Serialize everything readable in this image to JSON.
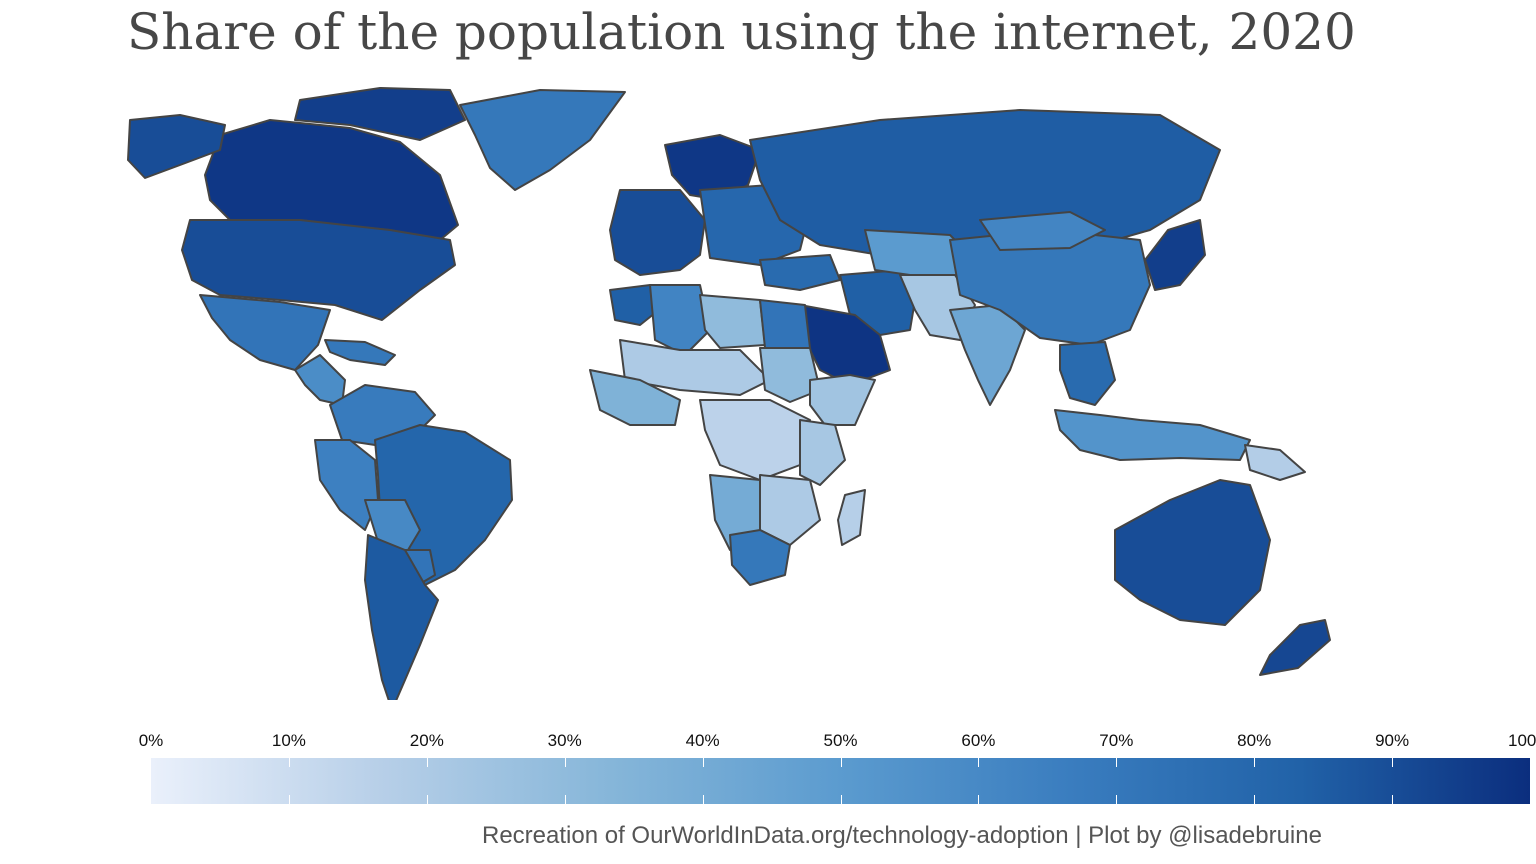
{
  "title": "Share of the population using the internet, 2020",
  "caption": "Recreation of OurWorldInData.org/technology-adoption | Plot by @lisadebruine",
  "legend": {
    "min": 0,
    "max": 100,
    "tick_labels": [
      "0%",
      "10%",
      "20%",
      "30%",
      "40%",
      "50%",
      "60%",
      "70%",
      "80%",
      "90%",
      "100%"
    ],
    "color_low": "#eaf0fb",
    "color_high": "#0b2e7e",
    "color_stops": [
      "#eaf0fb",
      "#b7cfe8",
      "#86b6d9",
      "#5b9bcf",
      "#3a7dbf",
      "#2162a8",
      "#0b2e7e"
    ]
  },
  "colors": {
    "border": "#444444",
    "ocean": "#ffffff",
    "title": "#474747",
    "caption": "#555555"
  },
  "map_data": {
    "type": "choropleth",
    "variable": "share of population using the internet (%)",
    "regions": [
      {
        "name": "Canada",
        "value": 97
      },
      {
        "name": "Alaska (United States)",
        "value": 90
      },
      {
        "name": "Greenland",
        "value": 70
      },
      {
        "name": "Canadian Arctic",
        "value": 95
      },
      {
        "name": "United States",
        "value": 90
      },
      {
        "name": "Mexico",
        "value": 72
      },
      {
        "name": "Central America",
        "value": 58
      },
      {
        "name": "Caribbean",
        "value": 70
      },
      {
        "name": "Colombia & Venezuela",
        "value": 68
      },
      {
        "name": "Ecuador & Peru",
        "value": 65
      },
      {
        "name": "Brazil",
        "value": 81
      },
      {
        "name": "Bolivia",
        "value": 60
      },
      {
        "name": "Paraguay",
        "value": 72
      },
      {
        "name": "Chile & Argentina",
        "value": 86
      },
      {
        "name": "Western Europe",
        "value": 90
      },
      {
        "name": "Scandinavia",
        "value": 97
      },
      {
        "name": "Eastern Europe",
        "value": 80
      },
      {
        "name": "Russia",
        "value": 85
      },
      {
        "name": "Turkey",
        "value": 78
      },
      {
        "name": "Iran",
        "value": 84
      },
      {
        "name": "Saudi Arabia",
        "value": 98
      },
      {
        "name": "Central Asia",
        "value": 50
      },
      {
        "name": "Afghanistan & Pakistan",
        "value": 22
      },
      {
        "name": "India",
        "value": 43
      },
      {
        "name": "China",
        "value": 70
      },
      {
        "name": "Mongolia",
        "value": 62
      },
      {
        "name": "Japan & Korea",
        "value": 95
      },
      {
        "name": "Southeast Asia",
        "value": 78
      },
      {
        "name": "Indonesia",
        "value": 54
      },
      {
        "name": "Papua New Guinea",
        "value": 18
      },
      {
        "name": "Australia",
        "value": 90
      },
      {
        "name": "New Zealand",
        "value": 92
      },
      {
        "name": "Morocco",
        "value": 84
      },
      {
        "name": "Algeria",
        "value": 63
      },
      {
        "name": "Libya",
        "value": 30
      },
      {
        "name": "Egypt",
        "value": 72
      },
      {
        "name": "Sahel",
        "value": 20
      },
      {
        "name": "West Africa",
        "value": 36
      },
      {
        "name": "Sudan",
        "value": 30
      },
      {
        "name": "Ethiopia & Somalia",
        "value": 24
      },
      {
        "name": "Central Africa",
        "value": 15
      },
      {
        "name": "East Africa",
        "value": 22
      },
      {
        "name": "Angola & Namibia",
        "value": 40
      },
      {
        "name": "Zambia & Mozambique",
        "value": 20
      },
      {
        "name": "South Africa",
        "value": 70
      },
      {
        "name": "Madagascar",
        "value": 17
      }
    ]
  }
}
